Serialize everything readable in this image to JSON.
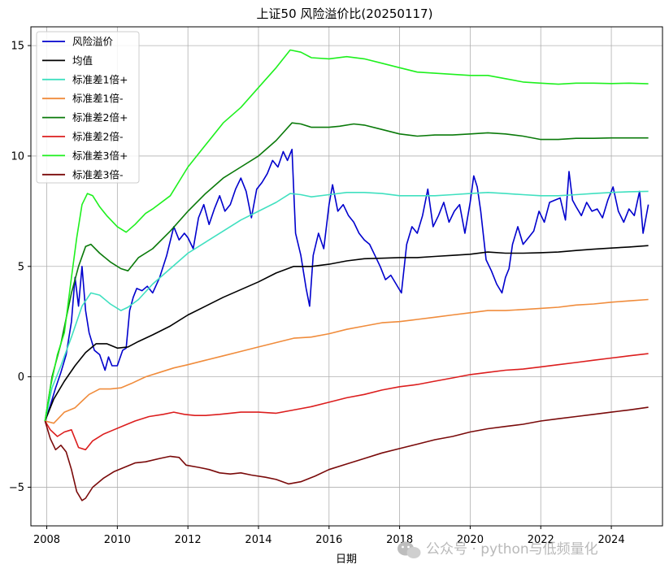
{
  "chart_data": {
    "type": "line",
    "title": "上证50 风险溢价比(20250117)",
    "xlabel": "日期",
    "ylabel": "",
    "xlim": [
      2007.55,
      2025.45
    ],
    "ylim": [
      -6.75,
      15.85
    ],
    "xticks": [
      2008,
      2010,
      2012,
      2014,
      2016,
      2018,
      2020,
      2022,
      2024
    ],
    "yticks": [
      -5,
      0,
      5,
      10,
      15
    ],
    "grid": true,
    "legend_position": "top-left",
    "series": [
      {
        "name": "风险溢价",
        "color": "#0000cd",
        "width": 1.6,
        "x": [
          2007.95,
          2008.1,
          2008.25,
          2008.4,
          2008.55,
          2008.7,
          2008.8,
          2008.9,
          2009.0,
          2009.1,
          2009.2,
          2009.35,
          2009.5,
          2009.65,
          2009.75,
          2009.85,
          2010.0,
          2010.15,
          2010.25,
          2010.35,
          2010.45,
          2010.55,
          2010.7,
          2010.85,
          2011.0,
          2011.2,
          2011.4,
          2011.6,
          2011.75,
          2011.9,
          2012.0,
          2012.15,
          2012.3,
          2012.45,
          2012.6,
          2012.75,
          2012.9,
          2013.05,
          2013.2,
          2013.35,
          2013.5,
          2013.65,
          2013.8,
          2013.95,
          2014.1,
          2014.25,
          2014.4,
          2014.55,
          2014.7,
          2014.82,
          2014.95,
          2015.05,
          2015.2,
          2015.35,
          2015.45,
          2015.55,
          2015.7,
          2015.85,
          2016.0,
          2016.1,
          2016.25,
          2016.4,
          2016.55,
          2016.7,
          2016.85,
          2017.0,
          2017.15,
          2017.3,
          2017.45,
          2017.6,
          2017.75,
          2017.9,
          2018.05,
          2018.2,
          2018.35,
          2018.5,
          2018.65,
          2018.8,
          2018.95,
          2019.1,
          2019.25,
          2019.4,
          2019.55,
          2019.7,
          2019.85,
          2020.0,
          2020.1,
          2020.2,
          2020.3,
          2020.45,
          2020.6,
          2020.75,
          2020.9,
          2021.0,
          2021.1,
          2021.2,
          2021.35,
          2021.5,
          2021.65,
          2021.8,
          2021.95,
          2022.1,
          2022.25,
          2022.4,
          2022.55,
          2022.7,
          2022.8,
          2022.9,
          2023.0,
          2023.15,
          2023.3,
          2023.45,
          2023.6,
          2023.75,
          2023.9,
          2024.05,
          2024.2,
          2024.35,
          2024.5,
          2024.65,
          2024.8,
          2024.9,
          2025.05
        ],
        "y": [
          -2.0,
          -1.3,
          -0.5,
          0.2,
          1.0,
          2.5,
          4.5,
          3.2,
          5.0,
          3.0,
          2.0,
          1.2,
          1.0,
          0.3,
          0.9,
          0.5,
          0.5,
          1.2,
          1.3,
          3.0,
          3.6,
          4.0,
          3.9,
          4.1,
          3.8,
          4.5,
          5.5,
          6.8,
          6.2,
          6.5,
          6.3,
          5.8,
          7.2,
          7.8,
          6.9,
          7.6,
          8.2,
          7.5,
          7.8,
          8.5,
          9.0,
          8.4,
          7.2,
          8.5,
          8.8,
          9.2,
          9.8,
          9.5,
          10.2,
          9.8,
          10.3,
          6.5,
          5.5,
          4.0,
          3.2,
          5.5,
          6.5,
          5.8,
          7.8,
          8.7,
          7.5,
          7.8,
          7.3,
          7.0,
          6.5,
          6.2,
          6.0,
          5.5,
          5.0,
          4.4,
          4.6,
          4.2,
          3.8,
          6.0,
          6.8,
          6.5,
          7.3,
          8.5,
          6.8,
          7.3,
          7.9,
          7.0,
          7.5,
          7.8,
          6.5,
          7.9,
          9.1,
          8.6,
          7.5,
          5.3,
          4.8,
          4.2,
          3.8,
          4.5,
          4.9,
          6.0,
          6.8,
          6.0,
          6.3,
          6.6,
          7.5,
          7.0,
          7.9,
          8.0,
          8.1,
          7.1,
          9.3,
          8.0,
          7.7,
          7.3,
          7.9,
          7.5,
          7.6,
          7.2,
          8.0,
          8.6,
          7.5,
          7.0,
          7.6,
          7.3,
          8.4,
          6.5,
          7.8
        ]
      },
      {
        "name": "均值",
        "color": "#000000",
        "width": 1.6,
        "x": [
          2007.95,
          2008.2,
          2008.5,
          2008.8,
          2009.1,
          2009.4,
          2009.7,
          2010.0,
          2010.3,
          2010.6,
          2011.0,
          2011.5,
          2012.0,
          2012.5,
          2013.0,
          2013.5,
          2014.0,
          2014.5,
          2015.0,
          2015.5,
          2016.0,
          2016.5,
          2017.0,
          2017.5,
          2018.0,
          2018.5,
          2019.0,
          2019.5,
          2020.0,
          2020.5,
          2021.0,
          2021.5,
          2022.0,
          2022.5,
          2023.0,
          2023.5,
          2024.0,
          2024.5,
          2025.05
        ],
        "y": [
          -2.0,
          -1.0,
          -0.2,
          0.5,
          1.1,
          1.5,
          1.5,
          1.3,
          1.35,
          1.6,
          1.9,
          2.3,
          2.8,
          3.2,
          3.6,
          3.95,
          4.3,
          4.7,
          5.0,
          5.0,
          5.1,
          5.25,
          5.35,
          5.37,
          5.4,
          5.4,
          5.45,
          5.5,
          5.55,
          5.65,
          5.6,
          5.6,
          5.62,
          5.65,
          5.72,
          5.78,
          5.83,
          5.88,
          5.94
        ]
      },
      {
        "name": "标准差1倍+",
        "color": "#40e0c0",
        "width": 1.6,
        "x": [
          2007.95,
          2008.15,
          2008.4,
          2008.7,
          2009.0,
          2009.25,
          2009.5,
          2009.8,
          2010.1,
          2010.3,
          2010.6,
          2011.0,
          2011.5,
          2012.0,
          2012.5,
          2013.0,
          2013.5,
          2014.0,
          2014.5,
          2014.9,
          2015.2,
          2015.5,
          2016.0,
          2016.5,
          2017.0,
          2017.5,
          2018.0,
          2018.5,
          2019.0,
          2019.5,
          2020.0,
          2020.5,
          2021.0,
          2021.5,
          2022.0,
          2022.5,
          2023.0,
          2023.5,
          2024.0,
          2024.5,
          2025.05
        ],
        "y": [
          -2.0,
          -0.5,
          0.5,
          1.8,
          3.2,
          3.8,
          3.7,
          3.3,
          3.0,
          3.15,
          3.5,
          4.2,
          4.9,
          5.6,
          6.1,
          6.6,
          7.1,
          7.5,
          7.9,
          8.3,
          8.25,
          8.15,
          8.25,
          8.35,
          8.35,
          8.3,
          8.2,
          8.2,
          8.2,
          8.25,
          8.3,
          8.35,
          8.3,
          8.25,
          8.2,
          8.2,
          8.25,
          8.3,
          8.35,
          8.38,
          8.4
        ]
      },
      {
        "name": "标准差1倍-",
        "color": "#f08c3c",
        "width": 1.6,
        "x": [
          2007.95,
          2008.2,
          2008.5,
          2008.8,
          2009.0,
          2009.2,
          2009.5,
          2009.8,
          2010.1,
          2010.4,
          2010.8,
          2011.2,
          2011.6,
          2012.0,
          2012.5,
          2013.0,
          2013.5,
          2014.0,
          2014.5,
          2015.0,
          2015.5,
          2016.0,
          2016.5,
          2017.0,
          2017.5,
          2018.0,
          2018.5,
          2019.0,
          2019.5,
          2020.0,
          2020.5,
          2021.0,
          2021.5,
          2022.0,
          2022.5,
          2023.0,
          2023.5,
          2024.0,
          2024.5,
          2025.05
        ],
        "y": [
          -2.0,
          -2.1,
          -1.6,
          -1.4,
          -1.1,
          -0.8,
          -0.55,
          -0.55,
          -0.5,
          -0.3,
          0.0,
          0.2,
          0.4,
          0.55,
          0.75,
          0.95,
          1.15,
          1.35,
          1.55,
          1.75,
          1.8,
          1.95,
          2.15,
          2.3,
          2.45,
          2.5,
          2.6,
          2.7,
          2.8,
          2.9,
          3.0,
          3.0,
          3.05,
          3.1,
          3.15,
          3.25,
          3.3,
          3.38,
          3.44,
          3.5
        ]
      },
      {
        "name": "标准差2倍+",
        "color": "#0a7a0a",
        "width": 1.6,
        "x": [
          2007.95,
          2008.15,
          2008.4,
          2008.7,
          2008.9,
          2009.1,
          2009.25,
          2009.5,
          2009.8,
          2010.1,
          2010.3,
          2010.6,
          2011.0,
          2011.5,
          2012.0,
          2012.5,
          2013.0,
          2013.5,
          2014.0,
          2014.5,
          2014.95,
          2015.2,
          2015.5,
          2016.0,
          2016.3,
          2016.7,
          2017.0,
          2017.5,
          2018.0,
          2018.5,
          2019.0,
          2019.5,
          2020.0,
          2020.5,
          2021.0,
          2021.5,
          2022.0,
          2022.5,
          2023.0,
          2023.5,
          2024.0,
          2024.5,
          2025.05
        ],
        "y": [
          -2.0,
          0.0,
          1.5,
          3.8,
          5.0,
          5.9,
          6.0,
          5.6,
          5.2,
          4.9,
          4.8,
          5.4,
          5.8,
          6.6,
          7.5,
          8.3,
          9.0,
          9.5,
          10.0,
          10.7,
          11.5,
          11.45,
          11.3,
          11.3,
          11.35,
          11.45,
          11.4,
          11.2,
          11.0,
          10.9,
          10.95,
          10.95,
          11.0,
          11.05,
          11.0,
          10.9,
          10.75,
          10.75,
          10.8,
          10.8,
          10.82,
          10.82,
          10.82
        ]
      },
      {
        "name": "标准差2倍-",
        "color": "#dc1e1e",
        "width": 1.6,
        "x": [
          2007.95,
          2008.1,
          2008.3,
          2008.5,
          2008.7,
          2008.9,
          2009.1,
          2009.3,
          2009.6,
          2009.9,
          2010.2,
          2010.5,
          2010.9,
          2011.3,
          2011.6,
          2011.9,
          2012.2,
          2012.5,
          2012.9,
          2013.2,
          2013.5,
          2014.0,
          2014.5,
          2015.0,
          2015.5,
          2016.0,
          2016.5,
          2017.0,
          2017.5,
          2018.0,
          2018.5,
          2019.0,
          2019.5,
          2020.0,
          2020.5,
          2021.0,
          2021.5,
          2022.0,
          2022.5,
          2023.0,
          2023.5,
          2024.0,
          2024.5,
          2025.05
        ],
        "y": [
          -2.0,
          -2.4,
          -2.7,
          -2.5,
          -2.4,
          -3.2,
          -3.3,
          -2.9,
          -2.6,
          -2.4,
          -2.2,
          -2.0,
          -1.8,
          -1.7,
          -1.6,
          -1.7,
          -1.75,
          -1.75,
          -1.7,
          -1.65,
          -1.6,
          -1.6,
          -1.65,
          -1.5,
          -1.35,
          -1.15,
          -0.95,
          -0.8,
          -0.6,
          -0.45,
          -0.35,
          -0.2,
          -0.05,
          0.1,
          0.2,
          0.3,
          0.35,
          0.45,
          0.55,
          0.65,
          0.75,
          0.85,
          0.95,
          1.05
        ]
      },
      {
        "name": "标准差3倍+",
        "color": "#1ef01e",
        "width": 1.6,
        "x": [
          2007.95,
          2008.1,
          2008.3,
          2008.5,
          2008.7,
          2008.85,
          2009.0,
          2009.15,
          2009.3,
          2009.5,
          2009.7,
          2010.0,
          2010.25,
          2010.5,
          2010.8,
          2011.0,
          2011.5,
          2012.0,
          2012.5,
          2013.0,
          2013.5,
          2014.0,
          2014.5,
          2014.9,
          2015.2,
          2015.5,
          2016.0,
          2016.5,
          2017.0,
          2017.5,
          2018.0,
          2018.5,
          2019.0,
          2019.5,
          2020.0,
          2020.5,
          2021.0,
          2021.5,
          2022.0,
          2022.5,
          2023.0,
          2023.5,
          2024.0,
          2024.5,
          2025.05
        ],
        "y": [
          -2.0,
          -0.5,
          1.0,
          2.0,
          4.5,
          6.3,
          7.8,
          8.3,
          8.2,
          7.7,
          7.3,
          6.8,
          6.55,
          6.9,
          7.4,
          7.6,
          8.2,
          9.5,
          10.5,
          11.5,
          12.2,
          13.1,
          14.0,
          14.8,
          14.7,
          14.45,
          14.4,
          14.5,
          14.4,
          14.2,
          14.0,
          13.8,
          13.75,
          13.7,
          13.65,
          13.65,
          13.5,
          13.35,
          13.3,
          13.25,
          13.3,
          13.3,
          13.28,
          13.3,
          13.27
        ]
      },
      {
        "name": "标准差3倍-",
        "color": "#7a0a0a",
        "width": 1.6,
        "x": [
          2007.95,
          2008.1,
          2008.25,
          2008.4,
          2008.55,
          2008.7,
          2008.85,
          2009.0,
          2009.1,
          2009.3,
          2009.6,
          2009.9,
          2010.2,
          2010.5,
          2010.8,
          2011.2,
          2011.5,
          2011.75,
          2011.95,
          2012.3,
          2012.6,
          2012.9,
          2013.2,
          2013.5,
          2013.8,
          2014.2,
          2014.5,
          2014.85,
          2015.2,
          2015.6,
          2016.0,
          2016.5,
          2017.0,
          2017.5,
          2018.0,
          2018.5,
          2019.0,
          2019.5,
          2020.0,
          2020.5,
          2021.0,
          2021.5,
          2022.0,
          2022.5,
          2023.0,
          2023.5,
          2024.0,
          2024.5,
          2025.05
        ],
        "y": [
          -2.0,
          -2.8,
          -3.3,
          -3.1,
          -3.4,
          -4.2,
          -5.2,
          -5.6,
          -5.5,
          -5.0,
          -4.6,
          -4.3,
          -4.1,
          -3.9,
          -3.85,
          -3.7,
          -3.6,
          -3.65,
          -4.0,
          -4.1,
          -4.2,
          -4.35,
          -4.4,
          -4.35,
          -4.45,
          -4.55,
          -4.65,
          -4.85,
          -4.75,
          -4.5,
          -4.2,
          -3.95,
          -3.7,
          -3.45,
          -3.25,
          -3.05,
          -2.85,
          -2.7,
          -2.5,
          -2.35,
          -2.25,
          -2.15,
          -2.0,
          -1.9,
          -1.8,
          -1.7,
          -1.6,
          -1.5,
          -1.38
        ]
      }
    ]
  },
  "watermark": {
    "icon": "wechat-icon",
    "text": "公众号 · python与低频量化"
  }
}
